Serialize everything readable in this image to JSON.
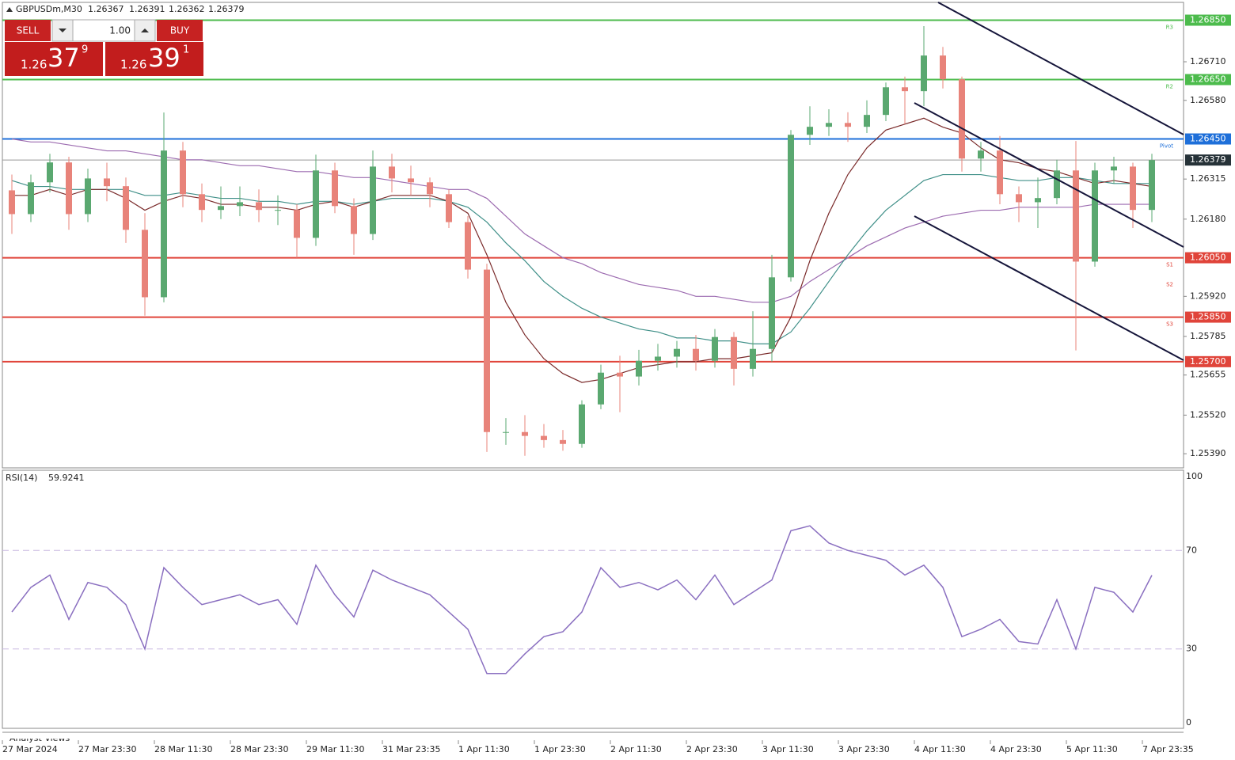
{
  "header": {
    "symbol": "GBPUSDm,M30",
    "ohlc": [
      1.26367,
      1.26391,
      1.26362,
      1.26379
    ]
  },
  "trade_panel": {
    "sell": "SELL",
    "buy": "BUY",
    "volume": "1.00",
    "bid": {
      "big": "1.26",
      "main": "37",
      "sup": "9"
    },
    "ask": {
      "big": "1.26",
      "main": "39",
      "sup": "1"
    }
  },
  "footer": {
    "tab": "Analyst Views"
  },
  "chart_data": [
    {
      "type": "candlestick",
      "up_color": "#5aa870",
      "down_color": "#e8837a",
      "categories": [
        "27 Mar 2024",
        null,
        null,
        null,
        "27 Mar 23:30",
        null,
        null,
        null,
        "28 Mar 11:30",
        null,
        null,
        null,
        "28 Mar 23:30",
        null,
        null,
        null,
        "29 Mar 11:30",
        null,
        null,
        null,
        "31 Mar 23:35",
        null,
        null,
        null,
        "1 Apr 11:30",
        null,
        null,
        null,
        "1 Apr 23:30",
        null,
        null,
        null,
        "2 Apr 11:30",
        null,
        null,
        null,
        "2 Apr 23:30",
        null,
        null,
        null,
        "3 Apr 11:30",
        null,
        null,
        null,
        "3 Apr 23:30",
        null,
        null,
        null,
        "4 Apr 11:30",
        null,
        null,
        null,
        "4 Apr 23:30",
        null,
        null,
        null,
        "5 Apr 11:30",
        null,
        null,
        null,
        "7 Apr 23:35"
      ],
      "ohlc": [
        [
          1.26277,
          1.2633,
          1.2613,
          1.26197
        ],
        [
          1.26197,
          1.2633,
          1.2617,
          1.26304
        ],
        [
          1.26304,
          1.264,
          1.2627,
          1.26371
        ],
        [
          1.26371,
          1.2639,
          1.26144,
          1.26197
        ],
        [
          1.26197,
          1.2635,
          1.2617,
          1.26317
        ],
        [
          1.26317,
          1.2637,
          1.2624,
          1.26291
        ],
        [
          1.26291,
          1.2632,
          1.261,
          1.26144
        ],
        [
          1.26144,
          1.262,
          1.25855,
          1.25917
        ],
        [
          1.25917,
          1.26539,
          1.259,
          1.26411
        ],
        [
          1.26411,
          1.2644,
          1.2622,
          1.26264
        ],
        [
          1.26264,
          1.263,
          1.2617,
          1.26211
        ],
        [
          1.26211,
          1.2629,
          1.2618,
          1.26224
        ],
        [
          1.26224,
          1.2629,
          1.2619,
          1.26237
        ],
        [
          1.26237,
          1.2628,
          1.2617,
          1.26211
        ],
        [
          1.26211,
          1.2626,
          1.2616,
          1.26211
        ],
        [
          1.26211,
          1.2623,
          1.2605,
          1.26117
        ],
        [
          1.26117,
          1.26397,
          1.2609,
          1.26344
        ],
        [
          1.26344,
          1.2637,
          1.262,
          1.26224
        ],
        [
          1.26224,
          1.2625,
          1.2606,
          1.2613
        ],
        [
          1.2613,
          1.26411,
          1.2611,
          1.26357
        ],
        [
          1.26357,
          1.264,
          1.2627,
          1.26317
        ],
        [
          1.26317,
          1.2636,
          1.2626,
          1.26304
        ],
        [
          1.26304,
          1.2632,
          1.2622,
          1.26264
        ],
        [
          1.26264,
          1.2628,
          1.2615,
          1.2617
        ],
        [
          1.2617,
          1.2619,
          1.2598,
          1.2601
        ],
        [
          1.2601,
          1.2603,
          1.25396,
          1.25463
        ],
        [
          1.25463,
          1.2551,
          1.2542,
          1.25463
        ],
        [
          1.25463,
          1.2552,
          1.25383,
          1.2545
        ],
        [
          1.2545,
          1.2549,
          1.2541,
          1.25436
        ],
        [
          1.25436,
          1.2547,
          1.254,
          1.25423
        ],
        [
          1.25423,
          1.2557,
          1.2541,
          1.25556
        ],
        [
          1.25556,
          1.2569,
          1.2554,
          1.25663
        ],
        [
          1.25663,
          1.2572,
          1.2553,
          1.2565
        ],
        [
          1.2565,
          1.2574,
          1.2562,
          1.25703
        ],
        [
          1.25703,
          1.2576,
          1.2567,
          1.25717
        ],
        [
          1.25717,
          1.2577,
          1.2568,
          1.25743
        ],
        [
          1.25743,
          1.2579,
          1.2567,
          1.25703
        ],
        [
          1.25703,
          1.2581,
          1.2568,
          1.25783
        ],
        [
          1.25783,
          1.258,
          1.2562,
          1.25676
        ],
        [
          1.25676,
          1.2587,
          1.2565,
          1.25743
        ],
        [
          1.25743,
          1.2606,
          1.257,
          1.25984
        ],
        [
          1.25984,
          1.2648,
          1.2597,
          1.26464
        ],
        [
          1.26464,
          1.2656,
          1.2643,
          1.26491
        ],
        [
          1.26491,
          1.2655,
          1.2646,
          1.26504
        ],
        [
          1.26504,
          1.2654,
          1.2644,
          1.26491
        ],
        [
          1.26491,
          1.2658,
          1.2647,
          1.26531
        ],
        [
          1.26531,
          1.2664,
          1.2651,
          1.26624
        ],
        [
          1.26624,
          1.2666,
          1.265,
          1.26611
        ],
        [
          1.26611,
          1.2683,
          1.2656,
          1.26731
        ],
        [
          1.26731,
          1.2676,
          1.2662,
          1.26651
        ],
        [
          1.26651,
          1.2666,
          1.2634,
          1.26384
        ],
        [
          1.26384,
          1.2644,
          1.2634,
          1.26411
        ],
        [
          1.26411,
          1.2646,
          1.2623,
          1.26264
        ],
        [
          1.26264,
          1.2629,
          1.2617,
          1.26237
        ],
        [
          1.26237,
          1.2632,
          1.2615,
          1.26251
        ],
        [
          1.26251,
          1.2638,
          1.2623,
          1.26344
        ],
        [
          1.26344,
          1.26443,
          1.25738,
          1.26037
        ],
        [
          1.26037,
          1.2637,
          1.2602,
          1.26344
        ],
        [
          1.26344,
          1.2639,
          1.263,
          1.26357
        ],
        [
          1.26357,
          1.2637,
          1.2615,
          1.26211
        ],
        [
          1.26211,
          1.264,
          1.2617,
          1.26379
        ]
      ],
      "series": [
        {
          "color": "#9c6bb0",
          "values": [
            1.2645,
            1.2644,
            1.2644,
            1.2643,
            1.2642,
            1.2641,
            1.2641,
            1.264,
            1.2639,
            1.2638,
            1.2638,
            1.2637,
            1.2636,
            1.2636,
            1.2635,
            1.2634,
            1.2634,
            1.2633,
            1.2632,
            1.2632,
            1.2631,
            1.263,
            1.2629,
            1.2628,
            1.2628,
            1.2625,
            1.2619,
            1.2613,
            1.2609,
            1.2605,
            1.2603,
            1.26,
            1.2598,
            1.2596,
            1.2595,
            1.2594,
            1.2592,
            1.2592,
            1.2591,
            1.259,
            1.259,
            1.2592,
            1.2597,
            1.2601,
            1.2605,
            1.2609,
            1.2612,
            1.2615,
            1.2617,
            1.2619,
            1.262,
            1.2621,
            1.2621,
            1.2622,
            1.2622,
            1.2622,
            1.2622,
            1.2623,
            1.2623,
            1.2623,
            1.2623
          ]
        },
        {
          "color": "#3f8f88",
          "values": [
            1.2631,
            1.2629,
            1.2629,
            1.2628,
            1.2628,
            1.2628,
            1.2628,
            1.2626,
            1.2626,
            1.2627,
            1.2626,
            1.2625,
            1.2625,
            1.2624,
            1.2624,
            1.2623,
            1.2624,
            1.2624,
            1.2623,
            1.2624,
            1.2625,
            1.2625,
            1.2625,
            1.2624,
            1.2622,
            1.2617,
            1.261,
            1.2604,
            1.2597,
            1.2592,
            1.2588,
            1.2585,
            1.2583,
            1.2581,
            1.258,
            1.2578,
            1.2578,
            1.2577,
            1.2577,
            1.2576,
            1.2576,
            1.258,
            1.2588,
            1.2597,
            1.2606,
            1.2614,
            1.2621,
            1.2626,
            1.2631,
            1.2633,
            1.2633,
            1.2633,
            1.2632,
            1.2631,
            1.2631,
            1.2632,
            1.2632,
            1.2631,
            1.263,
            1.263,
            1.263
          ]
        },
        {
          "color": "#7a2a2a",
          "values": [
            1.2626,
            1.2626,
            1.2628,
            1.2626,
            1.2628,
            1.2628,
            1.2625,
            1.2621,
            1.2624,
            1.2626,
            1.2625,
            1.2623,
            1.2623,
            1.2622,
            1.2622,
            1.2621,
            1.2623,
            1.2624,
            1.2622,
            1.2624,
            1.2626,
            1.2626,
            1.2626,
            1.2624,
            1.262,
            1.2606,
            1.259,
            1.2579,
            1.2571,
            1.2566,
            1.2563,
            1.2564,
            1.2566,
            1.2568,
            1.2569,
            1.257,
            1.257,
            1.2571,
            1.2571,
            1.2572,
            1.2573,
            1.2585,
            1.2604,
            1.262,
            1.2633,
            1.2642,
            1.2648,
            1.265,
            1.2652,
            1.2649,
            1.2647,
            1.2642,
            1.2638,
            1.2637,
            1.2635,
            1.2634,
            1.2632,
            1.263,
            1.2631,
            1.263,
            1.2629
          ]
        }
      ],
      "levels": [
        {
          "value": 1.2685,
          "label": "1.26850",
          "tag": "R3",
          "color": "#4cbb4c"
        },
        {
          "value": 1.2665,
          "label": "1.26650",
          "tag": "R2",
          "color": "#4cbb4c"
        },
        {
          "value": 1.2645,
          "label": "1.26450",
          "tag": "Pivot",
          "color": "#1e6fd9"
        },
        {
          "value": 1.2605,
          "label": "1.26050",
          "tag": "S1",
          "color": "#e0443a"
        },
        {
          "value": 1.2585,
          "label": "1.25850",
          "tag": "S3",
          "color": "#e0443a"
        },
        {
          "value": 1.257,
          "label": "1.25700",
          "color": "#e0443a"
        }
      ],
      "extra_tags": [
        {
          "tag": "S2",
          "value": 1.2596,
          "color": "#e0443a"
        }
      ],
      "current_price": 1.26379,
      "ylim": [
        1.25345,
        1.2691
      ],
      "yticks": [
        {
          "value": 1.2539,
          "label": "1.25390"
        },
        {
          "value": 1.2552,
          "label": "1.25520"
        },
        1.25655,
        1.25785,
        {
          "value": 1.2592,
          "label": "1.25920"
        },
        {
          "value": 1.2618,
          "label": "1.26180"
        },
        1.26315,
        {
          "value": 1.2658,
          "label": "1.26580"
        },
        {
          "value": 1.2671,
          "label": "1.26710"
        }
      ]
    },
    {
      "type": "line",
      "title": "RSI(14)",
      "color": "#8a6fc0",
      "ylim": [
        0,
        100
      ],
      "yticks": [
        0,
        30,
        70,
        100
      ],
      "dashed_levels": [
        30,
        70
      ],
      "values": [
        45,
        55,
        60,
        42,
        57,
        55,
        48,
        30,
        63,
        55,
        48,
        50,
        52,
        48,
        50,
        40,
        64,
        52,
        43,
        62,
        58,
        55,
        52,
        45,
        38,
        20,
        20,
        28,
        35,
        37,
        45,
        63,
        55,
        57,
        54,
        58,
        50,
        60,
        48,
        53,
        58,
        78,
        80,
        73,
        70,
        68,
        66,
        60,
        64,
        55,
        35,
        38,
        42,
        33,
        32,
        50,
        30,
        55,
        53,
        45,
        59.9241
      ]
    }
  ]
}
